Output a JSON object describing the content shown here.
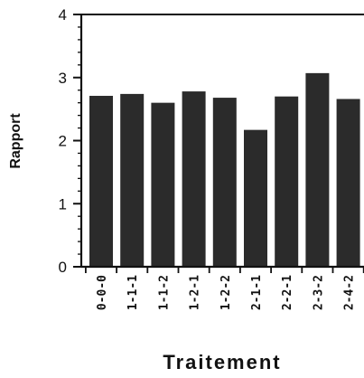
{
  "chart_data": {
    "type": "bar",
    "categories": [
      "0-0-0",
      "1-1-1",
      "1-1-2",
      "1-2-1",
      "1-2-2",
      "2-1-1",
      "2-2-1",
      "2-3-2",
      "2-4-2"
    ],
    "values": [
      2.71,
      2.74,
      2.6,
      2.78,
      2.68,
      2.17,
      2.7,
      3.07,
      2.66
    ],
    "xlabel": "Traitement",
    "ylabel": "Rapport",
    "ylim": [
      0,
      4
    ],
    "yticks": [
      0,
      1,
      2,
      3,
      4
    ],
    "grid": false,
    "bar_color": "#2b2b2b"
  }
}
